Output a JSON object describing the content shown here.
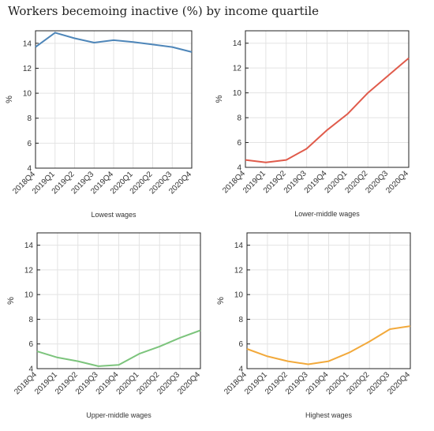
{
  "title": "Workers becemoing inactive (%) by income quartile",
  "chart_data": [
    {
      "type": "line",
      "xlabel": "Lowest wages",
      "ylabel": "%",
      "ylim": [
        4,
        15
      ],
      "yticks": [
        4,
        6,
        8,
        10,
        12,
        14
      ],
      "grid": true,
      "color": "#4e86b9",
      "categories": [
        "2018Q4",
        "2019Q1",
        "2019Q2",
        "2019Q3",
        "2019Q4",
        "2020Q1",
        "2020Q2",
        "2020Q3",
        "2020Q4"
      ],
      "values": [
        13.7,
        14.85,
        14.4,
        14.05,
        14.25,
        14.1,
        13.9,
        13.7,
        13.3
      ]
    },
    {
      "type": "line",
      "xlabel": "Lower-middle wages",
      "ylabel": "%",
      "ylim": [
        4,
        15
      ],
      "yticks": [
        4,
        6,
        8,
        10,
        12,
        14
      ],
      "grid": true,
      "color": "#e05b4b",
      "categories": [
        "2018Q4",
        "2019Q1",
        "2019Q2",
        "2019Q3",
        "2019Q4",
        "2020Q1",
        "2020Q2",
        "2020Q3",
        "2020Q4"
      ],
      "values": [
        4.6,
        4.4,
        4.6,
        5.5,
        7.0,
        8.3,
        10.0,
        11.4,
        12.8
      ]
    },
    {
      "type": "line",
      "xlabel": "Upper-middle wages",
      "ylabel": "%",
      "ylim": [
        4,
        15
      ],
      "yticks": [
        4,
        6,
        8,
        10,
        12,
        14
      ],
      "grid": true,
      "color": "#7cc47c",
      "categories": [
        "2018Q4",
        "2019Q1",
        "2019Q2",
        "2019Q3",
        "2019Q4",
        "2020Q1",
        "2020Q2",
        "2020Q3",
        "2020Q4"
      ],
      "values": [
        5.4,
        4.9,
        4.6,
        4.2,
        4.3,
        5.2,
        5.8,
        6.5,
        7.1
      ]
    },
    {
      "type": "line",
      "xlabel": "Highest wages",
      "ylabel": "%",
      "ylim": [
        4,
        15
      ],
      "yticks": [
        4,
        6,
        8,
        10,
        12,
        14
      ],
      "grid": true,
      "color": "#f2a93b",
      "categories": [
        "2018Q4",
        "2019Q1",
        "2019Q2",
        "2019Q3",
        "2019Q4",
        "2020Q1",
        "2020Q2",
        "2020Q3",
        "2020Q4"
      ],
      "values": [
        5.6,
        5.0,
        4.6,
        4.35,
        4.6,
        5.3,
        6.2,
        7.2,
        7.45
      ]
    }
  ]
}
